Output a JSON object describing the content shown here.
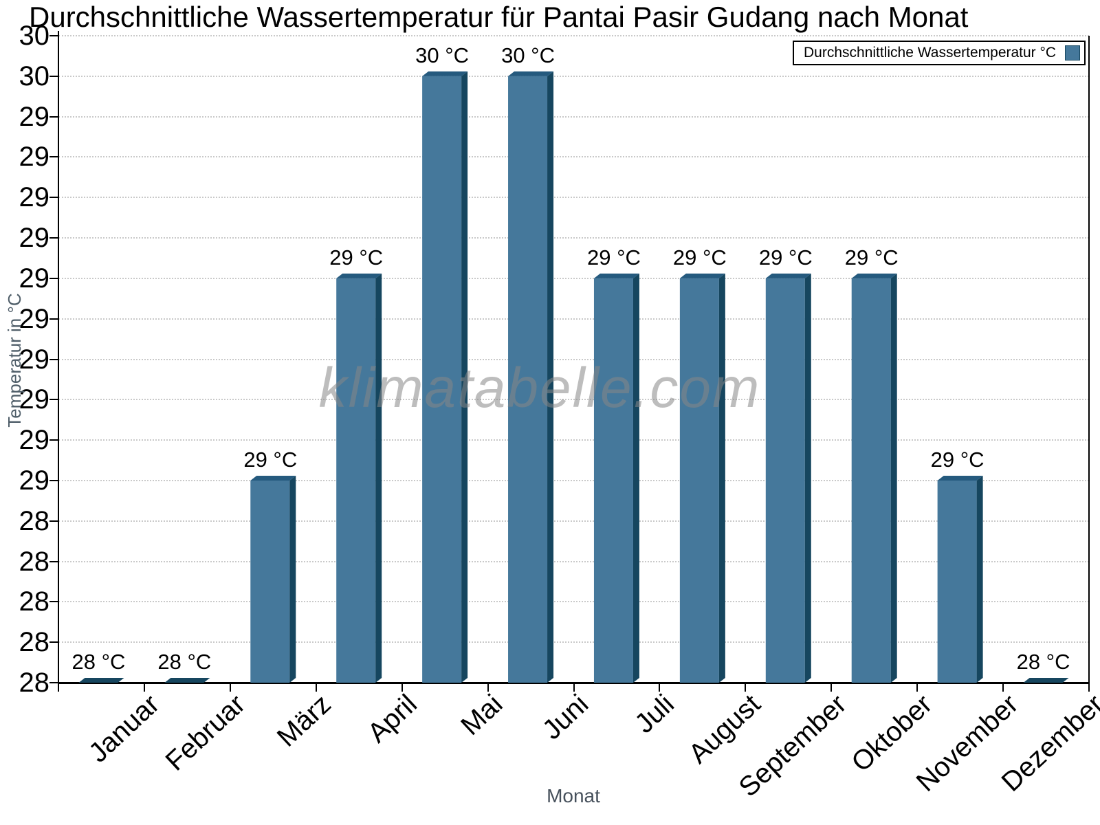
{
  "title": "Durchschnittliche Wassertemperatur für Pantai Pasir Gudang nach Monat",
  "legend": {
    "label": "Durchschnittliche Wassertemperatur °C"
  },
  "watermark": "klimatabelle.com",
  "y_axis": {
    "title": "Temperatur in °C",
    "tick_labels": [
      "30",
      "30",
      "29",
      "29",
      "29",
      "29",
      "29",
      "29",
      "29",
      "29",
      "29",
      "29",
      "28",
      "28",
      "28",
      "28",
      "28"
    ]
  },
  "x_axis": {
    "title": "Monat"
  },
  "chart_data": {
    "type": "bar",
    "title": "Durchschnittliche Wassertemperatur für Pantai Pasir Gudang nach Monat",
    "series_name": "Durchschnittliche Wassertemperatur °C",
    "categories": [
      "Januar",
      "Februar",
      "März",
      "April",
      "Mai",
      "Juni",
      "Juli",
      "August",
      "September",
      "Oktober",
      "November",
      "Dezember"
    ],
    "values": [
      28,
      28,
      29,
      29,
      30,
      30,
      29,
      29,
      29,
      29,
      29,
      28
    ],
    "bar_labels": [
      "28 °C",
      "28 °C",
      "29 °C",
      "29 °C",
      "30 °C",
      "30 °C",
      "29 °C",
      "29 °C",
      "29 °C",
      "29 °C",
      "29 °C",
      "28 °C"
    ],
    "height_levels": [
      0,
      0,
      1,
      2,
      3,
      3,
      2,
      2,
      2,
      2,
      1,
      0
    ],
    "xlabel": "Monat",
    "ylabel": "Temperatur in °C",
    "ylim": [
      28,
      30.2
    ],
    "grid": "dotted horizontal gridlines at every tick",
    "legend_position": "top-right",
    "bar_style": "3d-extruded"
  },
  "colors": {
    "background": "#FFFFFF",
    "bar_fill": "#45789B",
    "bar_top": "#255A7E",
    "bar_shadow": "#16465F",
    "grid_line": "#C9C9C9",
    "axis_line": "#000000",
    "axis_title": "#4E5D68",
    "watermark": "#868686",
    "text": "#000000"
  }
}
